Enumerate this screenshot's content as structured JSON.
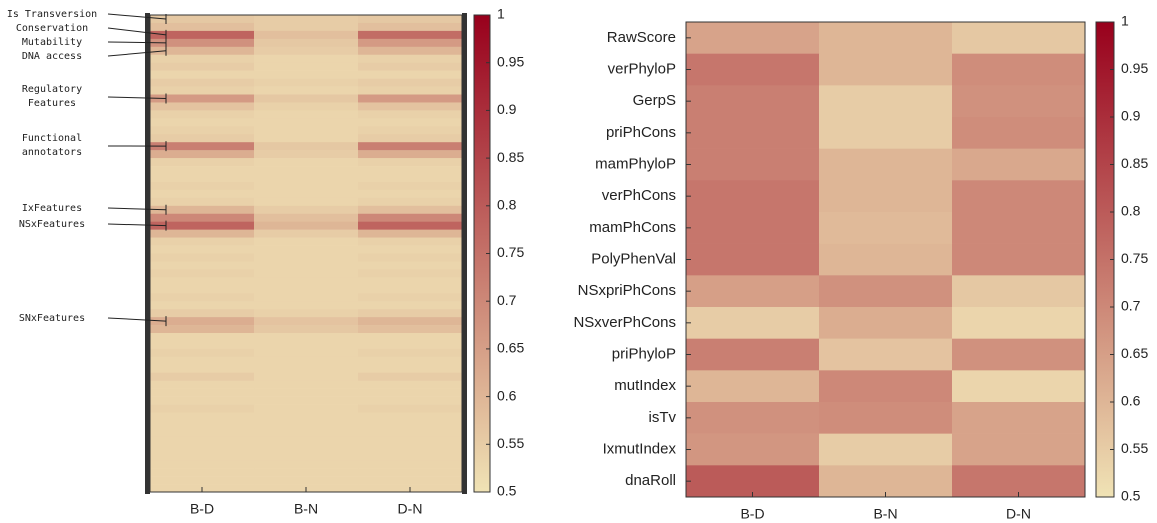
{
  "chart_data": [
    {
      "type": "heatmap",
      "columns": [
        "B-D",
        "B-N",
        "D-N"
      ],
      "values": [
        [
          0.56,
          0.55,
          0.56
        ],
        [
          0.58,
          0.55,
          0.58
        ],
        [
          0.78,
          0.58,
          0.76
        ],
        [
          0.68,
          0.56,
          0.66
        ],
        [
          0.6,
          0.55,
          0.6
        ],
        [
          0.54,
          0.53,
          0.54
        ],
        [
          0.55,
          0.53,
          0.55
        ],
        [
          0.53,
          0.53,
          0.53
        ],
        [
          0.55,
          0.54,
          0.55
        ],
        [
          0.54,
          0.53,
          0.54
        ],
        [
          0.66,
          0.56,
          0.66
        ],
        [
          0.57,
          0.54,
          0.57
        ],
        [
          0.54,
          0.53,
          0.54
        ],
        [
          0.53,
          0.53,
          0.53
        ],
        [
          0.54,
          0.53,
          0.54
        ],
        [
          0.55,
          0.53,
          0.55
        ],
        [
          0.72,
          0.56,
          0.72
        ],
        [
          0.62,
          0.55,
          0.62
        ],
        [
          0.54,
          0.53,
          0.54
        ],
        [
          0.53,
          0.53,
          0.53
        ],
        [
          0.53,
          0.53,
          0.53
        ],
        [
          0.54,
          0.53,
          0.54
        ],
        [
          0.53,
          0.53,
          0.53
        ],
        [
          0.54,
          0.53,
          0.54
        ],
        [
          0.6,
          0.55,
          0.58
        ],
        [
          0.7,
          0.58,
          0.7
        ],
        [
          0.78,
          0.6,
          0.78
        ],
        [
          0.6,
          0.55,
          0.6
        ],
        [
          0.54,
          0.53,
          0.54
        ],
        [
          0.53,
          0.53,
          0.53
        ],
        [
          0.54,
          0.53,
          0.54
        ],
        [
          0.53,
          0.53,
          0.53
        ],
        [
          0.54,
          0.53,
          0.54
        ],
        [
          0.53,
          0.53,
          0.53
        ],
        [
          0.53,
          0.53,
          0.53
        ],
        [
          0.54,
          0.53,
          0.54
        ],
        [
          0.53,
          0.53,
          0.53
        ],
        [
          0.55,
          0.54,
          0.55
        ],
        [
          0.62,
          0.57,
          0.6
        ],
        [
          0.6,
          0.56,
          0.58
        ],
        [
          0.53,
          0.53,
          0.53
        ],
        [
          0.53,
          0.53,
          0.53
        ],
        [
          0.54,
          0.53,
          0.54
        ],
        [
          0.53,
          0.53,
          0.53
        ],
        [
          0.53,
          0.53,
          0.53
        ],
        [
          0.55,
          0.53,
          0.55
        ],
        [
          0.53,
          0.53,
          0.53
        ],
        [
          0.53,
          0.53,
          0.53
        ],
        [
          0.53,
          0.53,
          0.53
        ],
        [
          0.54,
          0.53,
          0.54
        ],
        [
          0.53,
          0.53,
          0.53
        ],
        [
          0.53,
          0.53,
          0.53
        ],
        [
          0.53,
          0.53,
          0.53
        ],
        [
          0.53,
          0.53,
          0.53
        ],
        [
          0.53,
          0.53,
          0.53
        ],
        [
          0.53,
          0.53,
          0.53
        ],
        [
          0.53,
          0.53,
          0.53
        ],
        [
          0.53,
          0.53,
          0.53
        ],
        [
          0.53,
          0.53,
          0.53
        ],
        [
          0.53,
          0.53,
          0.53
        ]
      ],
      "annotations": [
        {
          "lines": [
            "Is Transversion"
          ],
          "row": 0
        },
        {
          "lines": [
            "Conservation"
          ],
          "row": 2
        },
        {
          "lines": [
            "Mutability"
          ],
          "row": 3
        },
        {
          "lines": [
            "DNA access"
          ],
          "row": 4
        },
        {
          "lines": [
            "Regulatory",
            "Features"
          ],
          "row": 10
        },
        {
          "lines": [
            "Functional",
            "annotators"
          ],
          "row": 16
        },
        {
          "lines": [
            "IxFeatures"
          ],
          "row": 24
        },
        {
          "lines": [
            "NSxFeatures"
          ],
          "row": 26
        },
        {
          "lines": [
            "SNxFeatures"
          ],
          "row": 38
        }
      ],
      "colors": [
        "#f0e3b5",
        "#98001c"
      ],
      "colorbar": {
        "lim": [
          0.5,
          1
        ],
        "ticks": [
          0.5,
          0.55,
          0.6,
          0.65,
          0.7,
          0.75,
          0.8,
          0.85,
          0.9,
          0.95,
          1
        ]
      }
    },
    {
      "type": "heatmap",
      "rows": [
        "RawScore",
        "verPhyloP",
        "GerpS",
        "priPhCons",
        "mamPhyloP",
        "verPhCons",
        "mamPhCons",
        "PolyPhenVal",
        "NSxpriPhCons",
        "NSxverPhCons",
        "priPhyloP",
        "mutIndex",
        "isTv",
        "IxmutIndex",
        "dnaRoll"
      ],
      "columns": [
        "B-D",
        "B-N",
        "D-N"
      ],
      "values": [
        [
          0.64,
          0.6,
          0.56
        ],
        [
          0.74,
          0.6,
          0.69
        ],
        [
          0.72,
          0.55,
          0.68
        ],
        [
          0.72,
          0.55,
          0.69
        ],
        [
          0.72,
          0.6,
          0.63
        ],
        [
          0.74,
          0.6,
          0.7
        ],
        [
          0.74,
          0.59,
          0.7
        ],
        [
          0.74,
          0.6,
          0.7
        ],
        [
          0.65,
          0.68,
          0.56
        ],
        [
          0.55,
          0.62,
          0.53
        ],
        [
          0.72,
          0.57,
          0.68
        ],
        [
          0.6,
          0.7,
          0.53
        ],
        [
          0.68,
          0.69,
          0.64
        ],
        [
          0.67,
          0.55,
          0.64
        ],
        [
          0.8,
          0.6,
          0.74
        ]
      ],
      "colors": [
        "#f0e3b5",
        "#98001c"
      ],
      "colorbar": {
        "lim": [
          0.5,
          1
        ],
        "ticks": [
          0.5,
          0.55,
          0.6,
          0.65,
          0.7,
          0.75,
          0.8,
          0.85,
          0.9,
          0.95,
          1
        ]
      }
    }
  ]
}
